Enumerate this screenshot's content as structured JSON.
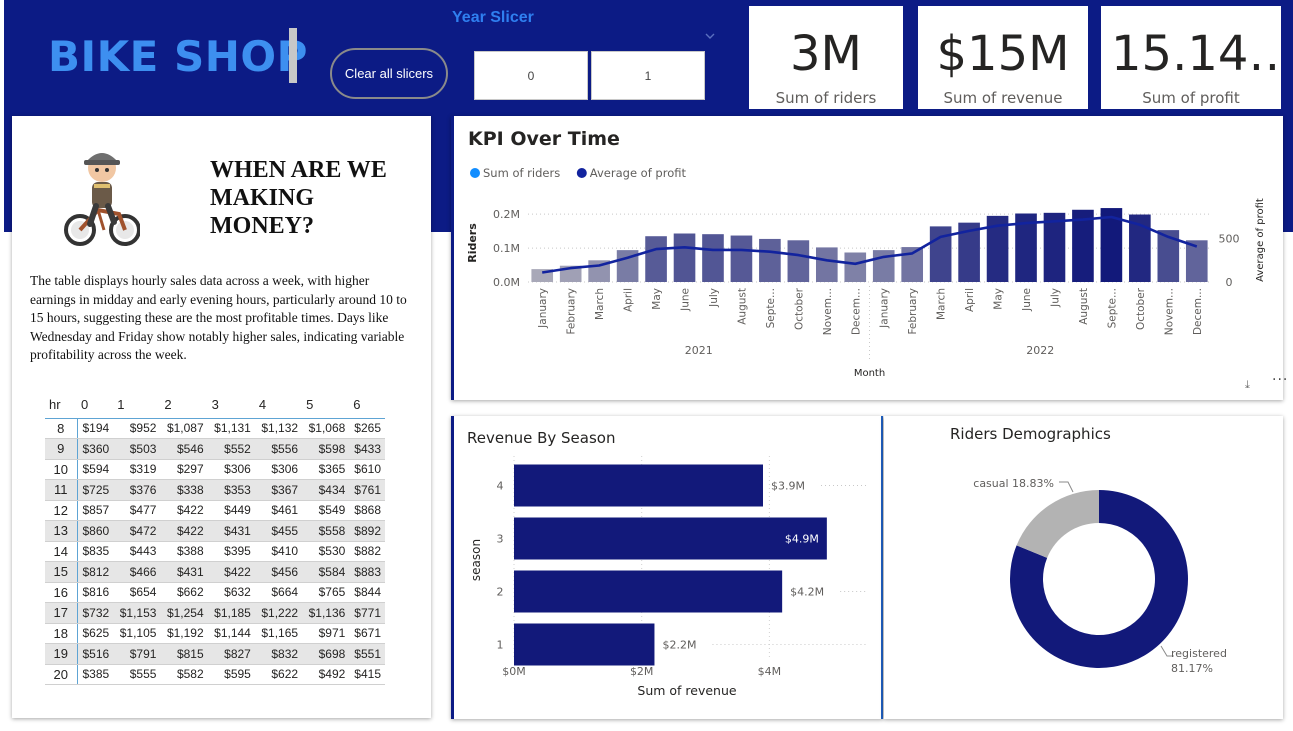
{
  "header": {
    "logo_text": "BIKE SHOP",
    "clear_button_label": "Clear all slicers",
    "slicer_title": "Year Slicer",
    "slicer_from": "0",
    "slicer_to": "1"
  },
  "kpis": [
    {
      "value": "3M",
      "label": "Sum of riders"
    },
    {
      "value": "$15M",
      "label": "Sum of revenue"
    },
    {
      "value": "15.14…",
      "label": "Sum of profit"
    }
  ],
  "info": {
    "title": "WHEN ARE WE MAKING MONEY?",
    "description": "The table displays hourly sales data across a week, with higher earnings in midday and early evening hours, particularly around 10 to 15 hours, suggesting these are the most profitable times. Days like Wednesday and Friday show notably higher sales, indicating variable profitability across the week."
  },
  "hour_table": {
    "columns": [
      "hr",
      "0",
      "1",
      "2",
      "3",
      "4",
      "5",
      "6"
    ],
    "rows": [
      [
        "8",
        "$194",
        "$952",
        "$1,087",
        "$1,131",
        "$1,132",
        "$1,068",
        "$265"
      ],
      [
        "9",
        "$360",
        "$503",
        "$546",
        "$552",
        "$556",
        "$598",
        "$433"
      ],
      [
        "10",
        "$594",
        "$319",
        "$297",
        "$306",
        "$306",
        "$365",
        "$610"
      ],
      [
        "11",
        "$725",
        "$376",
        "$338",
        "$353",
        "$367",
        "$434",
        "$761"
      ],
      [
        "12",
        "$857",
        "$477",
        "$422",
        "$449",
        "$461",
        "$549",
        "$868"
      ],
      [
        "13",
        "$860",
        "$472",
        "$422",
        "$431",
        "$455",
        "$558",
        "$892"
      ],
      [
        "14",
        "$835",
        "$443",
        "$388",
        "$395",
        "$410",
        "$530",
        "$882"
      ],
      [
        "15",
        "$812",
        "$466",
        "$431",
        "$422",
        "$456",
        "$584",
        "$883"
      ],
      [
        "16",
        "$816",
        "$654",
        "$662",
        "$632",
        "$664",
        "$765",
        "$844"
      ],
      [
        "17",
        "$732",
        "$1,153",
        "$1,254",
        "$1,185",
        "$1,222",
        "$1,136",
        "$771"
      ],
      [
        "18",
        "$625",
        "$1,105",
        "$1,192",
        "$1,144",
        "$1,165",
        "$971",
        "$671"
      ],
      [
        "19",
        "$516",
        "$791",
        "$815",
        "$827",
        "$832",
        "$698",
        "$551"
      ],
      [
        "20",
        "$385",
        "$555",
        "$582",
        "$595",
        "$622",
        "$492",
        "$415"
      ]
    ]
  },
  "chart_data": [
    {
      "type": "bar+line",
      "title": "KPI Over Time",
      "legend": [
        {
          "name": "Sum of riders",
          "color": "#118DFF"
        },
        {
          "name": "Average of profit",
          "color": "#12239E"
        }
      ],
      "legend_position": "top-left",
      "xlabel": "Month",
      "ylabel": "Riders",
      "y2label": "Average of profit",
      "y_ticks": [
        "0.0M",
        "0.1M",
        "0.2M"
      ],
      "y2_ticks": [
        "0",
        "500"
      ],
      "ylim": [
        0,
        0.23
      ],
      "y2lim": [
        0,
        900
      ],
      "categories": [
        "January",
        "February",
        "March",
        "April",
        "May",
        "June",
        "July",
        "August",
        "Septe...",
        "October",
        "Novem...",
        "Decem...",
        "January",
        "February",
        "March",
        "April",
        "May",
        "June",
        "July",
        "August",
        "Septe...",
        "October",
        "Novem...",
        "Decem..."
      ],
      "year_groups": [
        {
          "label": "2021",
          "count": 12
        },
        {
          "label": "2022",
          "count": 12
        }
      ],
      "series": [
        {
          "name": "Sum of riders",
          "type": "bar",
          "values": [
            0.038,
            0.048,
            0.064,
            0.094,
            0.135,
            0.143,
            0.141,
            0.137,
            0.127,
            0.123,
            0.102,
            0.087,
            0.094,
            0.103,
            0.164,
            0.175,
            0.195,
            0.202,
            0.204,
            0.213,
            0.218,
            0.199,
            0.153,
            0.123
          ]
        },
        {
          "name": "Average of profit",
          "type": "line",
          "values": [
            110,
            160,
            190,
            280,
            380,
            400,
            370,
            370,
            350,
            310,
            250,
            210,
            290,
            330,
            520,
            590,
            650,
            680,
            700,
            720,
            750,
            660,
            520,
            410
          ]
        }
      ],
      "grid": true
    },
    {
      "type": "bar",
      "orientation": "horizontal",
      "title": "Revenue By Season",
      "xlabel": "Sum of revenue",
      "ylabel": "season",
      "categories": [
        "4",
        "3",
        "2",
        "1"
      ],
      "values": [
        3.9,
        4.9,
        4.2,
        2.2
      ],
      "data_labels": [
        "$3.9M",
        "$4.9M",
        "$4.2M",
        "$2.2M"
      ],
      "x_ticks": [
        "$0M",
        "$2M",
        "$4M"
      ],
      "xlim": [
        0,
        5.2
      ],
      "color": "#12197A"
    },
    {
      "type": "pie",
      "title": "Riders Demographics",
      "donut": true,
      "slices": [
        {
          "name": "registered",
          "value": 81.17,
          "label": "registered 81.17%",
          "color": "#12197A"
        },
        {
          "name": "casual",
          "value": 18.83,
          "label": "casual 18.83%",
          "color": "#B3B3B3"
        }
      ]
    }
  ]
}
